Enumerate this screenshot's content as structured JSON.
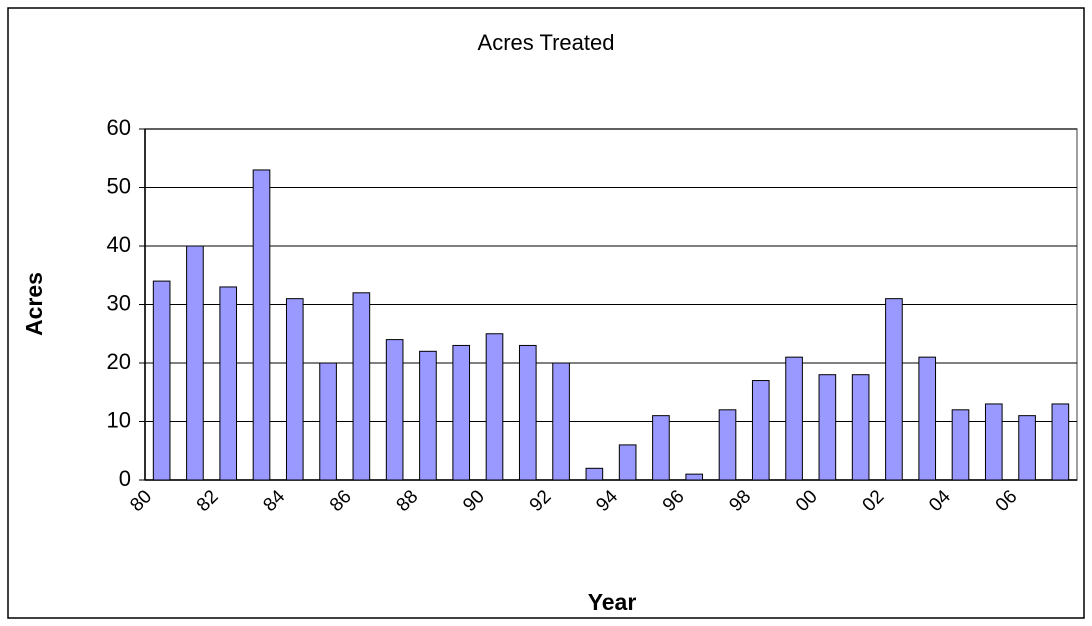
{
  "chart_data": {
    "type": "bar",
    "title": "Acres Treated",
    "x_label": "Year",
    "y_label": "Acres",
    "categories": [
      "80",
      null,
      "82",
      null,
      "84",
      null,
      "86",
      null,
      "88",
      null,
      "90",
      null,
      "92",
      null,
      "94",
      null,
      "96",
      null,
      "98",
      null,
      "00",
      null,
      "02",
      null,
      "04",
      null,
      "06",
      null
    ],
    "values": [
      34,
      40,
      33,
      53,
      31,
      20,
      32,
      24,
      22,
      23,
      25,
      23,
      20,
      2,
      6,
      11,
      1,
      12,
      17,
      21,
      18,
      18,
      31,
      21,
      12,
      13,
      11,
      13
    ],
    "color": "#9999ff",
    "ylim": [
      0,
      60
    ],
    "yticks": [
      0,
      10,
      20,
      30,
      40,
      50,
      60
    ],
    "grid": true
  }
}
